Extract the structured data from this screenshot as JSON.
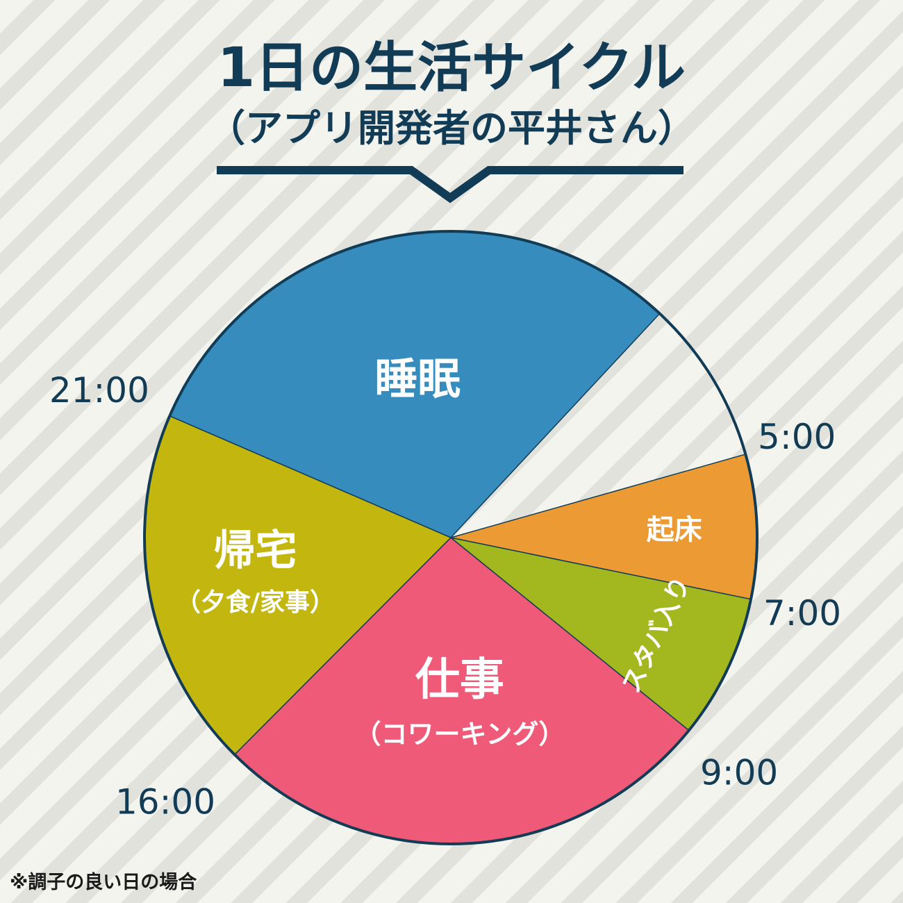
{
  "header": {
    "title": "1日の生活サイクル",
    "subtitle": "（アプリ開発者の平井さん）"
  },
  "colors": {
    "navy": "#123c55",
    "sleep": "#358cbd",
    "wakeup": "#ec9a33",
    "starbucks": "#a3b71e",
    "work": "#ee5a77",
    "home": "#c2b60f"
  },
  "chart_data": {
    "type": "pie",
    "unit": "hours",
    "clock_hours": 24,
    "slices": [
      {
        "key": "sleep",
        "label": "睡眠",
        "sublabel": "",
        "start": 21,
        "end": 29,
        "color": "#358cbd",
        "text_color": "#ffffff"
      },
      {
        "key": "wakeup",
        "label": "起床",
        "sublabel": "",
        "start": 5,
        "end": 7,
        "color": "#ec9a33",
        "text_color": "#ffffff"
      },
      {
        "key": "starbucks",
        "label": "スタバ入り",
        "sublabel": "",
        "start": 7,
        "end": 9,
        "color": "#a3b71e",
        "text_color": "#ffffff"
      },
      {
        "key": "work",
        "label": "仕事",
        "sublabel": "（コワーキング）",
        "start": 9,
        "end": 16,
        "color": "#ee5a77",
        "text_color": "#ffffff"
      },
      {
        "key": "home",
        "label": "帰宅",
        "sublabel": "（夕食/家事）",
        "start": 16,
        "end": 21,
        "color": "#c2b60f",
        "text_color": "#ffffff"
      }
    ],
    "time_labels": [
      {
        "text": "21:00",
        "hour": 21
      },
      {
        "text": "5:00",
        "hour": 5
      },
      {
        "text": "7:00",
        "hour": 7
      },
      {
        "text": "9:00",
        "hour": 9
      },
      {
        "text": "16:00",
        "hour": 16
      }
    ]
  },
  "footer": {
    "note": "※調子の良い日の場合"
  }
}
